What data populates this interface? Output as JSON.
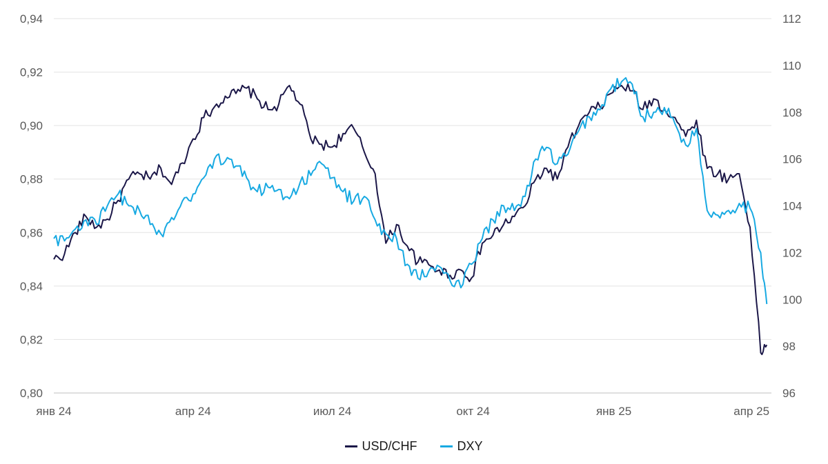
{
  "chart_data": {
    "type": "line",
    "x_ticks": [
      "янв 24",
      "апр 24",
      "июл 24",
      "окт 24",
      "янв 25",
      "апр 25"
    ],
    "y_left": {
      "min": 0.8,
      "max": 0.94,
      "ticks": [
        "0,80",
        "0,82",
        "0,84",
        "0,86",
        "0,88",
        "0,90",
        "0,92",
        "0,94"
      ],
      "tick_values": [
        0.8,
        0.82,
        0.84,
        0.86,
        0.88,
        0.9,
        0.92,
        0.94
      ]
    },
    "y_right": {
      "min": 96,
      "max": 112,
      "ticks": [
        "96",
        "98",
        "100",
        "102",
        "104",
        "106",
        "108",
        "110",
        "112"
      ],
      "tick_values": [
        96,
        98,
        100,
        102,
        104,
        106,
        108,
        110,
        112
      ]
    },
    "grid": true,
    "legend_position": "bottom-center",
    "series": [
      {
        "name": "USD/CHF",
        "axis": "left",
        "color": "#1b1748",
        "points": [
          [
            "2024-01-01",
            0.85
          ],
          [
            "2024-01-08",
            0.852
          ],
          [
            "2024-01-15",
            0.86
          ],
          [
            "2024-01-22",
            0.866
          ],
          [
            "2024-01-29",
            0.862
          ],
          [
            "2024-02-05",
            0.865
          ],
          [
            "2024-02-12",
            0.872
          ],
          [
            "2024-02-19",
            0.88
          ],
          [
            "2024-02-26",
            0.882
          ],
          [
            "2024-03-04",
            0.88
          ],
          [
            "2024-03-11",
            0.884
          ],
          [
            "2024-03-18",
            0.878
          ],
          [
            "2024-03-25",
            0.886
          ],
          [
            "2024-04-01",
            0.895
          ],
          [
            "2024-04-08",
            0.903
          ],
          [
            "2024-04-15",
            0.907
          ],
          [
            "2024-04-22",
            0.911
          ],
          [
            "2024-04-29",
            0.912
          ],
          [
            "2024-05-06",
            0.914
          ],
          [
            "2024-05-13",
            0.91
          ],
          [
            "2024-05-20",
            0.906
          ],
          [
            "2024-05-27",
            0.908
          ],
          [
            "2024-06-03",
            0.915
          ],
          [
            "2024-06-10",
            0.908
          ],
          [
            "2024-06-17",
            0.895
          ],
          [
            "2024-06-24",
            0.893
          ],
          [
            "2024-07-01",
            0.892
          ],
          [
            "2024-07-08",
            0.897
          ],
          [
            "2024-07-15",
            0.899
          ],
          [
            "2024-07-22",
            0.89
          ],
          [
            "2024-07-29",
            0.882
          ],
          [
            "2024-08-05",
            0.856
          ],
          [
            "2024-08-12",
            0.863
          ],
          [
            "2024-08-19",
            0.855
          ],
          [
            "2024-08-26",
            0.849
          ],
          [
            "2024-09-02",
            0.848
          ],
          [
            "2024-09-09",
            0.846
          ],
          [
            "2024-09-16",
            0.844
          ],
          [
            "2024-09-23",
            0.846
          ],
          [
            "2024-09-30",
            0.843
          ],
          [
            "2024-10-07",
            0.856
          ],
          [
            "2024-10-14",
            0.859
          ],
          [
            "2024-10-21",
            0.863
          ],
          [
            "2024-10-28",
            0.866
          ],
          [
            "2024-11-04",
            0.87
          ],
          [
            "2024-11-11",
            0.88
          ],
          [
            "2024-11-18",
            0.884
          ],
          [
            "2024-11-25",
            0.88
          ],
          [
            "2024-12-02",
            0.892
          ],
          [
            "2024-12-09",
            0.9
          ],
          [
            "2024-12-16",
            0.905
          ],
          [
            "2024-12-23",
            0.907
          ],
          [
            "2024-12-30",
            0.912
          ],
          [
            "2025-01-06",
            0.915
          ],
          [
            "2025-01-13",
            0.913
          ],
          [
            "2025-01-20",
            0.906
          ],
          [
            "2025-01-27",
            0.91
          ],
          [
            "2025-02-03",
            0.906
          ],
          [
            "2025-02-10",
            0.903
          ],
          [
            "2025-02-17",
            0.896
          ],
          [
            "2025-02-24",
            0.902
          ],
          [
            "2025-03-03",
            0.884
          ],
          [
            "2025-03-10",
            0.882
          ],
          [
            "2025-03-17",
            0.88
          ],
          [
            "2025-03-24",
            0.882
          ],
          [
            "2025-03-31",
            0.862
          ],
          [
            "2025-04-07",
            0.815
          ],
          [
            "2025-04-11",
            0.818
          ]
        ]
      },
      {
        "name": "DXY",
        "axis": "right",
        "color": "#17a9e2",
        "points": [
          [
            "2024-01-01",
            102.6
          ],
          [
            "2024-01-08",
            102.5
          ],
          [
            "2024-01-15",
            103.0
          ],
          [
            "2024-01-22",
            103.4
          ],
          [
            "2024-01-29",
            103.2
          ],
          [
            "2024-02-05",
            104.0
          ],
          [
            "2024-02-12",
            104.5
          ],
          [
            "2024-02-19",
            104.0
          ],
          [
            "2024-02-26",
            103.8
          ],
          [
            "2024-03-04",
            103.2
          ],
          [
            "2024-03-11",
            102.8
          ],
          [
            "2024-03-18",
            103.5
          ],
          [
            "2024-03-25",
            104.2
          ],
          [
            "2024-04-01",
            104.5
          ],
          [
            "2024-04-08",
            105.2
          ],
          [
            "2024-04-15",
            106.0
          ],
          [
            "2024-04-22",
            105.9
          ],
          [
            "2024-04-29",
            105.7
          ],
          [
            "2024-05-06",
            105.2
          ],
          [
            "2024-05-13",
            104.6
          ],
          [
            "2024-05-20",
            104.8
          ],
          [
            "2024-05-27",
            104.7
          ],
          [
            "2024-06-03",
            104.3
          ],
          [
            "2024-06-10",
            105.0
          ],
          [
            "2024-06-17",
            105.3
          ],
          [
            "2024-06-24",
            105.8
          ],
          [
            "2024-07-01",
            105.2
          ],
          [
            "2024-07-08",
            104.6
          ],
          [
            "2024-07-15",
            104.2
          ],
          [
            "2024-07-22",
            104.4
          ],
          [
            "2024-07-29",
            103.4
          ],
          [
            "2024-08-05",
            102.8
          ],
          [
            "2024-08-12",
            102.6
          ],
          [
            "2024-08-19",
            101.5
          ],
          [
            "2024-08-26",
            100.9
          ],
          [
            "2024-09-02",
            101.2
          ],
          [
            "2024-09-09",
            101.4
          ],
          [
            "2024-09-16",
            100.8
          ],
          [
            "2024-09-23",
            100.5
          ],
          [
            "2024-09-30",
            101.5
          ],
          [
            "2024-10-07",
            102.6
          ],
          [
            "2024-10-14",
            103.4
          ],
          [
            "2024-10-21",
            104.0
          ],
          [
            "2024-10-28",
            103.8
          ],
          [
            "2024-11-04",
            104.4
          ],
          [
            "2024-11-11",
            106.0
          ],
          [
            "2024-11-18",
            106.5
          ],
          [
            "2024-11-25",
            105.8
          ],
          [
            "2024-12-02",
            106.2
          ],
          [
            "2024-12-09",
            107.2
          ],
          [
            "2024-12-16",
            107.8
          ],
          [
            "2024-12-23",
            108.1
          ],
          [
            "2024-12-30",
            109.0
          ],
          [
            "2025-01-06",
            109.3
          ],
          [
            "2025-01-13",
            109.2
          ],
          [
            "2025-01-20",
            107.8
          ],
          [
            "2025-01-27",
            108.0
          ],
          [
            "2025-02-03",
            108.2
          ],
          [
            "2025-02-10",
            107.5
          ],
          [
            "2025-02-17",
            106.6
          ],
          [
            "2025-02-24",
            107.3
          ],
          [
            "2025-03-03",
            103.8
          ],
          [
            "2025-03-10",
            103.6
          ],
          [
            "2025-03-17",
            103.8
          ],
          [
            "2025-03-24",
            104.1
          ],
          [
            "2025-03-31",
            103.9
          ],
          [
            "2025-04-07",
            102.0
          ],
          [
            "2025-04-11",
            99.8
          ]
        ]
      }
    ]
  }
}
